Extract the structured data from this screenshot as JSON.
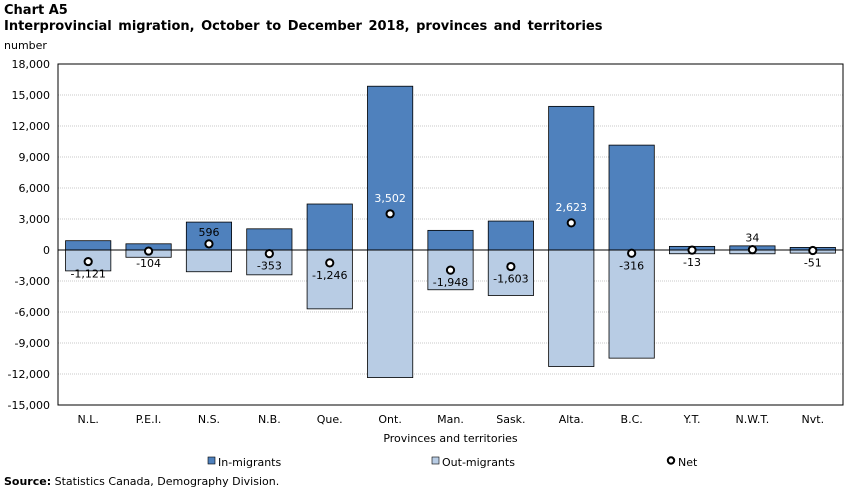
{
  "header": {
    "chart_label": "Chart A5",
    "title": "Interprovincial migration, October to December 2018, provinces and territories",
    "y_unit": "number"
  },
  "footer": {
    "source_label": "Source:",
    "source_text": "Statistics Canada, Demography Division."
  },
  "colors": {
    "in_migrants": "#4f81bd",
    "out_migrants": "#b8cce4",
    "net_marker": "#000000",
    "grid": "#c8c8c8"
  },
  "chart_data": {
    "type": "bar",
    "title": "Interprovincial migration, October to December 2018, provinces and territories",
    "xlabel": "Provinces and territories",
    "ylabel": "number",
    "ylim": [
      -15000,
      18000
    ],
    "yticks": [
      18000,
      15000,
      12000,
      9000,
      6000,
      3000,
      0,
      -3000,
      -6000,
      -9000,
      -12000,
      -15000
    ],
    "ytick_labels": [
      "18,000",
      "15,000",
      "12,000",
      "9,000",
      "6,000",
      "3,000",
      "0",
      "-3,000",
      "-6,000",
      "-9,000",
      "-12,000",
      "-15,000"
    ],
    "grid": true,
    "legend_position": "bottom",
    "categories": [
      "N.L.",
      "P.E.I.",
      "N.S.",
      "N.B.",
      "Que.",
      "Ont.",
      "Man.",
      "Sask.",
      "Alta.",
      "B.C.",
      "Y.T.",
      "N.W.T.",
      "Nvt."
    ],
    "series": [
      {
        "name": "In-migrants",
        "style": "bar",
        "color": "#4f81bd",
        "values": [
          900,
          600,
          2700,
          2050,
          4450,
          15850,
          1900,
          2800,
          13900,
          10150,
          350,
          400,
          250
        ]
      },
      {
        "name": "Out-migrants",
        "style": "bar",
        "color": "#b8cce4",
        "values": [
          -2021,
          -704,
          -2104,
          -2403,
          -5696,
          -12348,
          -3848,
          -4403,
          -11277,
          -10466,
          -363,
          -366,
          -301
        ]
      },
      {
        "name": "Net",
        "style": "marker",
        "color": "#000000",
        "values": [
          -1121,
          -104,
          596,
          -353,
          -1246,
          3502,
          -1948,
          -1603,
          2623,
          -316,
          -13,
          34,
          -51
        ],
        "labels": [
          "-1,121",
          "-104",
          "596",
          "-353",
          "-1,246",
          "3,502",
          "-1,948",
          "-1,603",
          "2,623",
          "-316",
          "-13",
          "34",
          "-51"
        ]
      }
    ]
  }
}
